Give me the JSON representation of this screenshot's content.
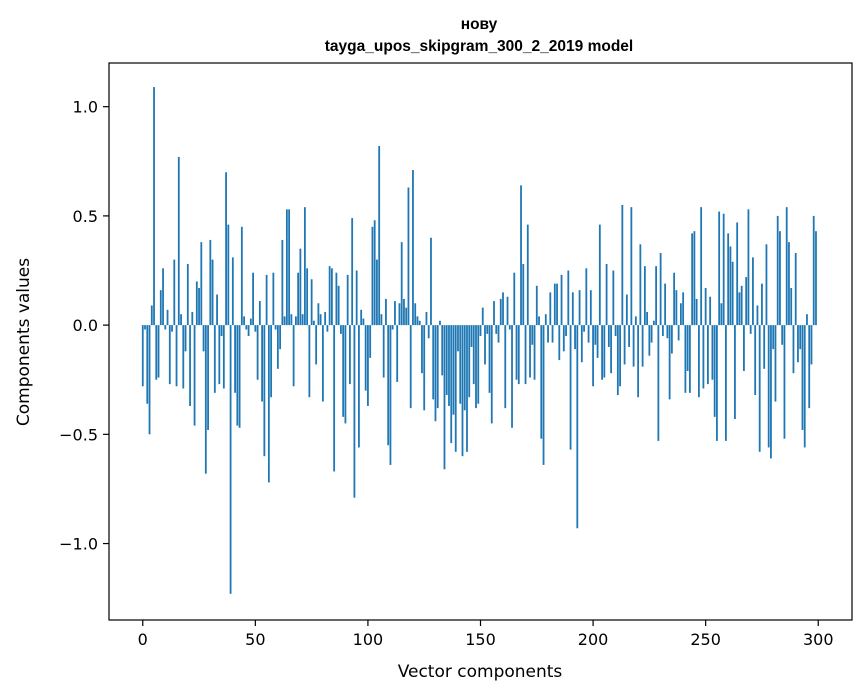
{
  "chart_data": {
    "type": "bar",
    "title_line1": "нову",
    "title_line2": "tayga_upos_skipgram_300_2_2019 model",
    "xlabel": "Vector components",
    "ylabel": "Components values",
    "xlim": [
      -15,
      315
    ],
    "ylim": [
      -1.35,
      1.2
    ],
    "x_ticks": [
      0,
      50,
      100,
      150,
      200,
      250,
      300
    ],
    "x_tick_labels": [
      "0",
      "50",
      "100",
      "150",
      "200",
      "250",
      "300"
    ],
    "y_ticks": [
      -1.0,
      -0.5,
      0.0,
      0.5,
      1.0
    ],
    "y_tick_labels": [
      "−1.0",
      "−0.5",
      "0.0",
      "0.5",
      "1.0"
    ],
    "bar_color": "#1f77b4",
    "grid": false,
    "legend": "none",
    "values": [
      -0.28,
      -0.02,
      -0.36,
      -0.5,
      0.09,
      1.09,
      -0.25,
      -0.24,
      0.16,
      0.26,
      -0.02,
      0.07,
      -0.27,
      -0.03,
      0.3,
      -0.28,
      0.77,
      0.05,
      -0.29,
      -0.12,
      0.28,
      -0.37,
      0.06,
      -0.46,
      0.2,
      0.17,
      0.38,
      -0.12,
      -0.68,
      -0.48,
      0.39,
      0.3,
      -0.31,
      0.14,
      -0.27,
      -0.05,
      -0.29,
      0.7,
      0.46,
      -1.23,
      0.31,
      -0.31,
      -0.46,
      -0.47,
      0.45,
      0.04,
      -0.02,
      -0.05,
      0.03,
      0.24,
      -0.03,
      -0.25,
      0.11,
      -0.35,
      -0.6,
      0.23,
      -0.72,
      -0.33,
      0.24,
      -0.02,
      -0.2,
      -0.11,
      0.39,
      0.04,
      0.53,
      0.53,
      0.05,
      -0.28,
      0.04,
      0.24,
      0.35,
      0.05,
      0.54,
      0.26,
      -0.33,
      0.21,
      0.02,
      -0.18,
      0.1,
      0.05,
      -0.35,
      0.06,
      -0.03,
      0.27,
      0.26,
      -0.67,
      0.24,
      0.18,
      -0.04,
      -0.42,
      -0.45,
      0.23,
      -0.27,
      0.49,
      -0.79,
      0.25,
      -0.56,
      0.07,
      0.03,
      -0.3,
      -0.37,
      -0.15,
      0.45,
      0.48,
      0.3,
      0.82,
      0.05,
      -0.24,
      0.12,
      -0.55,
      -0.64,
      -0.02,
      0.11,
      -0.26,
      0.1,
      0.38,
      0.12,
      0.08,
      0.63,
      -0.38,
      0.71,
      0.1,
      0.04,
      0.02,
      -0.22,
      -0.39,
      0.06,
      -0.06,
      0.4,
      -0.34,
      -0.44,
      -0.38,
      0.02,
      -0.23,
      -0.66,
      -0.32,
      -0.37,
      -0.54,
      -0.41,
      -0.58,
      -0.12,
      -0.36,
      -0.6,
      -0.39,
      -0.58,
      -0.33,
      -0.1,
      -0.27,
      -0.38,
      -0.36,
      -0.05,
      0.08,
      -0.18,
      -0.04,
      -0.31,
      -0.45,
      0.11,
      -0.04,
      -0.08,
      0.12,
      0.15,
      -0.38,
      0.13,
      -0.02,
      -0.47,
      0.24,
      -0.25,
      -0.27,
      0.64,
      0.28,
      -0.27,
      0.46,
      -0.24,
      -0.09,
      -0.25,
      0.18,
      0.04,
      -0.52,
      -0.64,
      0.05,
      -0.08,
      0.15,
      -0.08,
      0.19,
      0.19,
      -0.16,
      0.23,
      -0.12,
      -0.05,
      0.25,
      -0.57,
      0.15,
      -0.11,
      -0.93,
      0.16,
      -0.17,
      -0.03,
      0.26,
      -0.08,
      0.16,
      -0.28,
      -0.09,
      -0.15,
      0.46,
      -0.25,
      -0.24,
      0.28,
      -0.1,
      -0.22,
      0.25,
      -0.05,
      -0.32,
      -0.28,
      0.55,
      -0.18,
      0.14,
      -0.1,
      0.54,
      -0.19,
      0.04,
      -0.33,
      0.37,
      -0.19,
      0.27,
      0.06,
      -0.14,
      -0.08,
      0.02,
      0.27,
      -0.53,
      0.33,
      -0.05,
      0.19,
      -0.06,
      -0.34,
      -0.13,
      0.24,
      0.16,
      -0.07,
      0.1,
      0.15,
      -0.31,
      -0.21,
      -0.31,
      0.42,
      0.43,
      0.12,
      -0.33,
      0.54,
      -0.29,
      0.17,
      -0.27,
      0.13,
      -0.25,
      -0.42,
      -0.53,
      0.52,
      0.1,
      0.51,
      -0.53,
      0.42,
      0.36,
      0.29,
      -0.43,
      0.47,
      0.15,
      0.18,
      -0.21,
      0.22,
      0.53,
      -0.04,
      0.31,
      -0.32,
      0.09,
      -0.58,
      0.19,
      -0.2,
      0.37,
      -0.56,
      -0.61,
      -0.11,
      -0.35,
      0.5,
      0.43,
      -0.09,
      -0.52,
      0.54,
      0.38,
      0.17,
      -0.22,
      0.33,
      -0.17,
      -0.11,
      -0.48,
      -0.56,
      0.05,
      -0.38,
      -0.18,
      0.5,
      0.43
    ]
  }
}
